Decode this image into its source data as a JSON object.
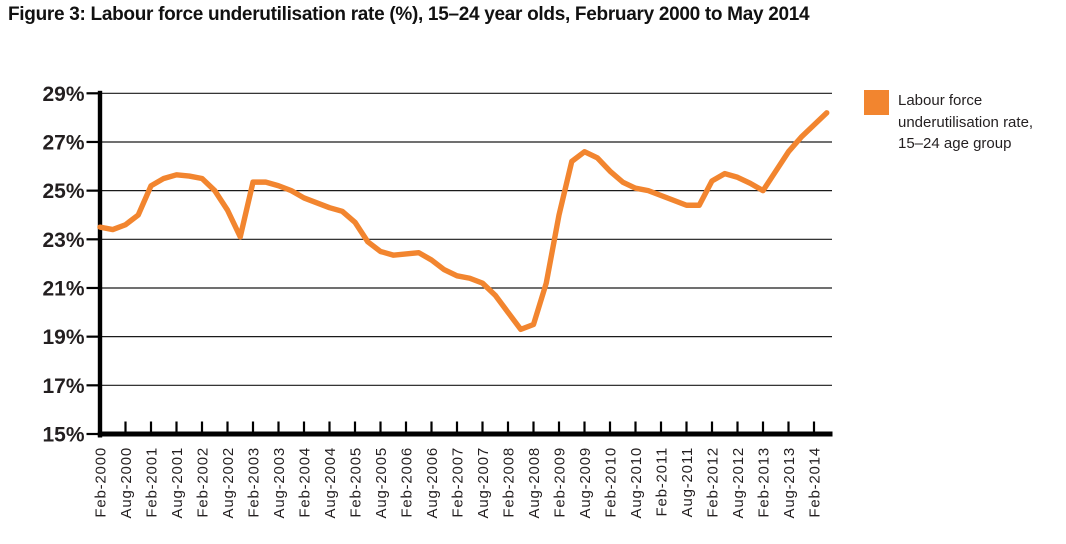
{
  "title": "Figure 3: Labour force underutilisation rate (%), 15–24 year olds, February 2000 to May 2014",
  "legend": {
    "lines": [
      "Labour force",
      "underutilisation rate,",
      "15–24 age group"
    ]
  },
  "colors": {
    "line": "#F2852F",
    "legend_swatch": "#F2852F",
    "axis": "#000000",
    "grid": "#1A1A1A",
    "text": "#231F20"
  },
  "chart_data": {
    "type": "line",
    "title": "Figure 3: Labour force underutilisation rate (%), 15–24 year olds, February 2000 to May 2014",
    "xlabel": "",
    "ylabel": "",
    "ylim": [
      15,
      29
    ],
    "yticks": [
      29,
      27,
      25,
      23,
      21,
      19,
      17,
      15
    ],
    "ytick_labels": [
      "29%",
      "27%",
      "25%",
      "23%",
      "21%",
      "19%",
      "17%",
      "15%"
    ],
    "grid": "horizontal",
    "legend_position": "right",
    "x_tick_labels": [
      "Feb-2000",
      "Aug-2000",
      "Feb-2001",
      "Aug-2001",
      "Feb-2002",
      "Aug-2002",
      "Feb-2003",
      "Aug-2003",
      "Feb-2004",
      "Aug-2004",
      "Feb-2005",
      "Aug-2005",
      "Feb-2006",
      "Aug-2006",
      "Feb-2007",
      "Aug-2007",
      "Feb-2008",
      "Aug-2008",
      "Feb-2009",
      "Aug-2009",
      "Feb-2010",
      "Aug-2010",
      "Feb-2011",
      "Aug-2011",
      "Feb-2012",
      "Aug-2012",
      "Feb-2013",
      "Aug-2013",
      "Feb-2014"
    ],
    "x": [
      "Feb-2000",
      "May-2000",
      "Aug-2000",
      "Nov-2000",
      "Feb-2001",
      "May-2001",
      "Aug-2001",
      "Nov-2001",
      "Feb-2002",
      "May-2002",
      "Aug-2002",
      "Nov-2002",
      "Feb-2003",
      "May-2003",
      "Aug-2003",
      "Nov-2003",
      "Feb-2004",
      "May-2004",
      "Aug-2004",
      "Nov-2004",
      "Feb-2005",
      "May-2005",
      "Aug-2005",
      "Nov-2005",
      "Feb-2006",
      "May-2006",
      "Aug-2006",
      "Nov-2006",
      "Feb-2007",
      "May-2007",
      "Aug-2007",
      "Nov-2007",
      "Feb-2008",
      "May-2008",
      "Aug-2008",
      "Nov-2008",
      "Feb-2009",
      "May-2009",
      "Aug-2009",
      "Nov-2009",
      "Feb-2010",
      "May-2010",
      "Aug-2010",
      "Nov-2010",
      "Feb-2011",
      "May-2011",
      "Aug-2011",
      "Nov-2011",
      "Feb-2012",
      "May-2012",
      "Aug-2012",
      "Nov-2012",
      "Feb-2013",
      "May-2013",
      "Aug-2013",
      "Nov-2013",
      "Feb-2014",
      "May-2014"
    ],
    "series": [
      {
        "name": "Labour force underutilisation rate, 15–24 age group",
        "values": [
          23.5,
          23.4,
          23.6,
          24.0,
          25.2,
          25.5,
          25.65,
          25.6,
          25.5,
          25.0,
          24.2,
          23.1,
          25.35,
          25.35,
          25.2,
          25.0,
          24.7,
          24.5,
          24.3,
          24.15,
          23.7,
          22.9,
          22.5,
          22.35,
          22.4,
          22.45,
          22.15,
          21.75,
          21.5,
          21.4,
          21.2,
          20.7,
          20.0,
          19.3,
          19.5,
          21.2,
          24.0,
          26.2,
          26.6,
          26.35,
          25.8,
          25.35,
          25.1,
          25.0,
          24.8,
          24.6,
          24.4,
          24.4,
          25.4,
          25.7,
          25.55,
          25.3,
          25.0,
          25.8,
          26.6,
          27.2,
          27.7,
          28.2
        ]
      }
    ]
  }
}
